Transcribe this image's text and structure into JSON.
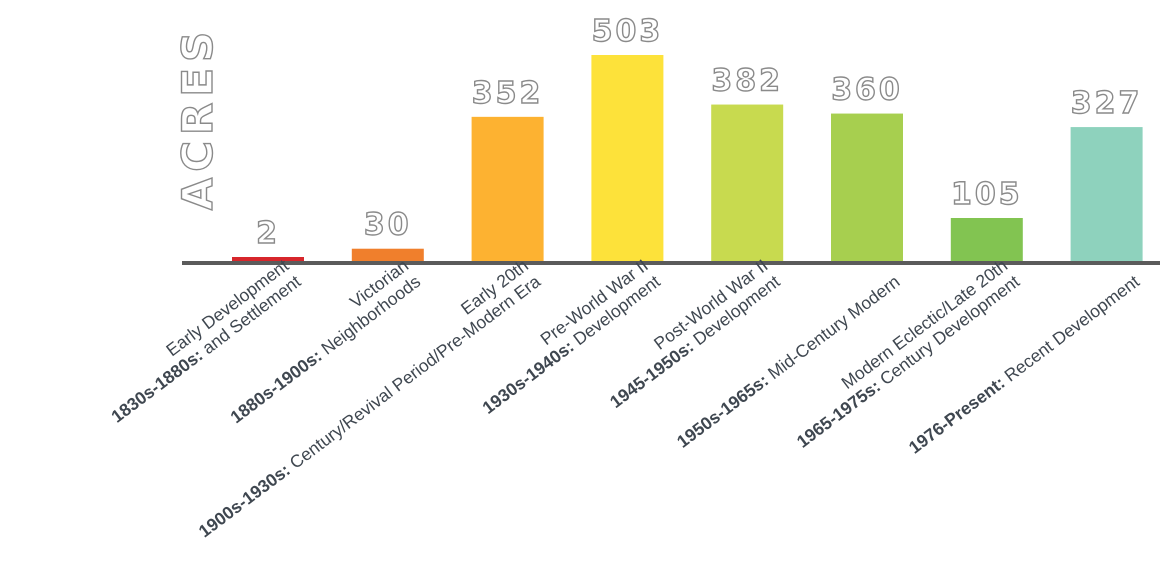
{
  "chart_data": {
    "type": "bar",
    "ylabel": "ACRES",
    "xlabel": "",
    "title": "",
    "ylim": [
      0,
      503
    ],
    "grid": false,
    "legend": "none",
    "categories": [
      {
        "era": "1830s-1880s:",
        "lines": [
          "Early Development",
          "and Settlement"
        ]
      },
      {
        "era": "1880s-1900s:",
        "lines": [
          "Victorian",
          "Neighborhoods"
        ]
      },
      {
        "era": "1900s-1930s:",
        "lines": [
          "Early 20th",
          "Century/Revival Period/Pre-Modern Era"
        ]
      },
      {
        "era": "1930s-1940s:",
        "lines": [
          "Pre-World War II",
          "Development"
        ]
      },
      {
        "era": "1945-1950s:",
        "lines": [
          "Post-World War II",
          "Development"
        ]
      },
      {
        "era": "1950s-1965s:",
        "lines": [
          "Mid-Century Modern"
        ]
      },
      {
        "era": "1965-1975s:",
        "lines": [
          "Modern Eclectic/Late 20th",
          "Century Development"
        ]
      },
      {
        "era": "1976-Present:",
        "lines": [
          "Recent Development"
        ]
      }
    ],
    "values": [
      2,
      30,
      352,
      503,
      382,
      360,
      105,
      327
    ],
    "colors": [
      "#d7262b",
      "#f07f2c",
      "#fdb231",
      "#fde23a",
      "#c8da4f",
      "#a7cf4f",
      "#82c451",
      "#8ed2bd"
    ],
    "axis_color": "#5b5b5b"
  }
}
